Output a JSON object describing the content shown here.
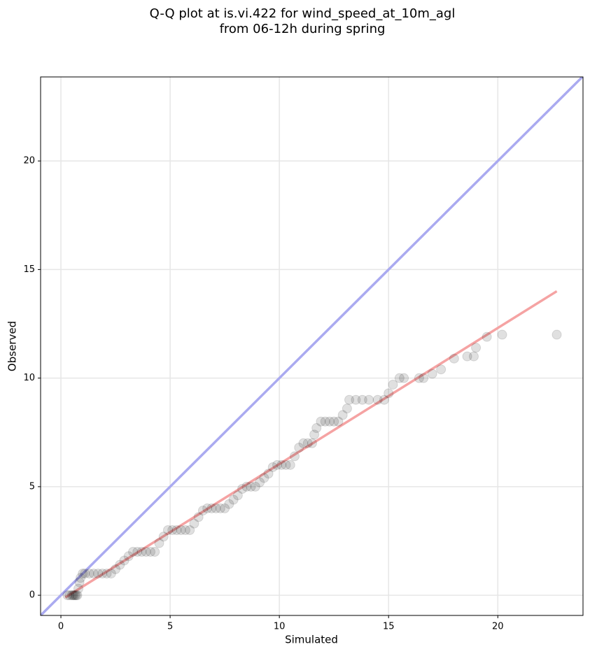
{
  "chart_data": {
    "type": "scatter",
    "title": [
      "Q-Q plot at is.vi.422 for wind_speed_at_10m_agl",
      "from 06-12h during spring"
    ],
    "xlabel": "Simulated",
    "ylabel": "Observed",
    "xlim": [
      -0.93,
      23.9
    ],
    "ylim": [
      -0.93,
      23.87
    ],
    "xticks": [
      0,
      5,
      10,
      15,
      20
    ],
    "yticks": [
      0,
      5,
      10,
      15,
      20
    ],
    "grid": true,
    "color": "#000000",
    "x": [
      0.3,
      0.4,
      0.5,
      0.55,
      0.6,
      0.65,
      0.7,
      0.75,
      0.8,
      0.85,
      0.9,
      1.0,
      1.1,
      1.3,
      1.5,
      1.7,
      1.9,
      2.1,
      2.3,
      2.5,
      2.7,
      2.9,
      3.1,
      3.3,
      3.5,
      3.7,
      3.9,
      4.1,
      4.3,
      4.5,
      4.7,
      4.9,
      5.1,
      5.3,
      5.5,
      5.7,
      5.9,
      6.1,
      6.3,
      6.5,
      6.7,
      6.9,
      7.1,
      7.3,
      7.5,
      7.7,
      7.9,
      8.1,
      8.3,
      8.5,
      8.7,
      8.9,
      9.1,
      9.3,
      9.5,
      9.7,
      9.9,
      10.1,
      10.3,
      10.5,
      10.7,
      10.9,
      11.1,
      11.3,
      11.5,
      11.6,
      11.7,
      11.9,
      12.1,
      12.3,
      12.5,
      12.7,
      12.9,
      13.1,
      13.2,
      13.5,
      13.8,
      14.1,
      14.5,
      14.8,
      15.0,
      15.2,
      15.5,
      15.7,
      16.4,
      16.6,
      17.0,
      17.4,
      18.0,
      18.6,
      18.9,
      19.0,
      19.5,
      20.2,
      22.7
    ],
    "y": [
      0,
      0,
      0,
      0,
      0,
      0,
      0,
      0,
      0.3,
      0.6,
      0.8,
      1,
      1,
      1,
      1,
      1,
      1,
      1,
      1,
      1.2,
      1.4,
      1.6,
      1.8,
      2,
      2,
      2,
      2,
      2,
      2,
      2.4,
      2.7,
      3,
      3,
      3,
      3,
      3,
      3,
      3.3,
      3.6,
      3.9,
      4,
      4,
      4,
      4,
      4,
      4.2,
      4.4,
      4.6,
      4.9,
      5,
      5,
      5,
      5.2,
      5.4,
      5.6,
      5.9,
      6,
      6,
      6,
      6,
      6.4,
      6.8,
      7,
      7,
      7,
      7.4,
      7.7,
      8,
      8,
      8,
      8,
      8,
      8.3,
      8.6,
      9,
      9,
      9,
      9,
      9,
      9,
      9.3,
      9.7,
      10,
      10,
      10,
      10,
      10.2,
      10.4,
      10.9,
      11,
      11,
      11.4,
      11.9,
      12,
      12
    ],
    "lines": [
      {
        "color": "#aaaaf0",
        "x": [
          -0.93,
          23.9
        ],
        "y": [
          -0.93,
          23.9
        ]
      },
      {
        "color": "#f5a3a3",
        "x": [
          0.2,
          22.7
        ],
        "y": [
          -0.1,
          14.0
        ]
      }
    ]
  }
}
